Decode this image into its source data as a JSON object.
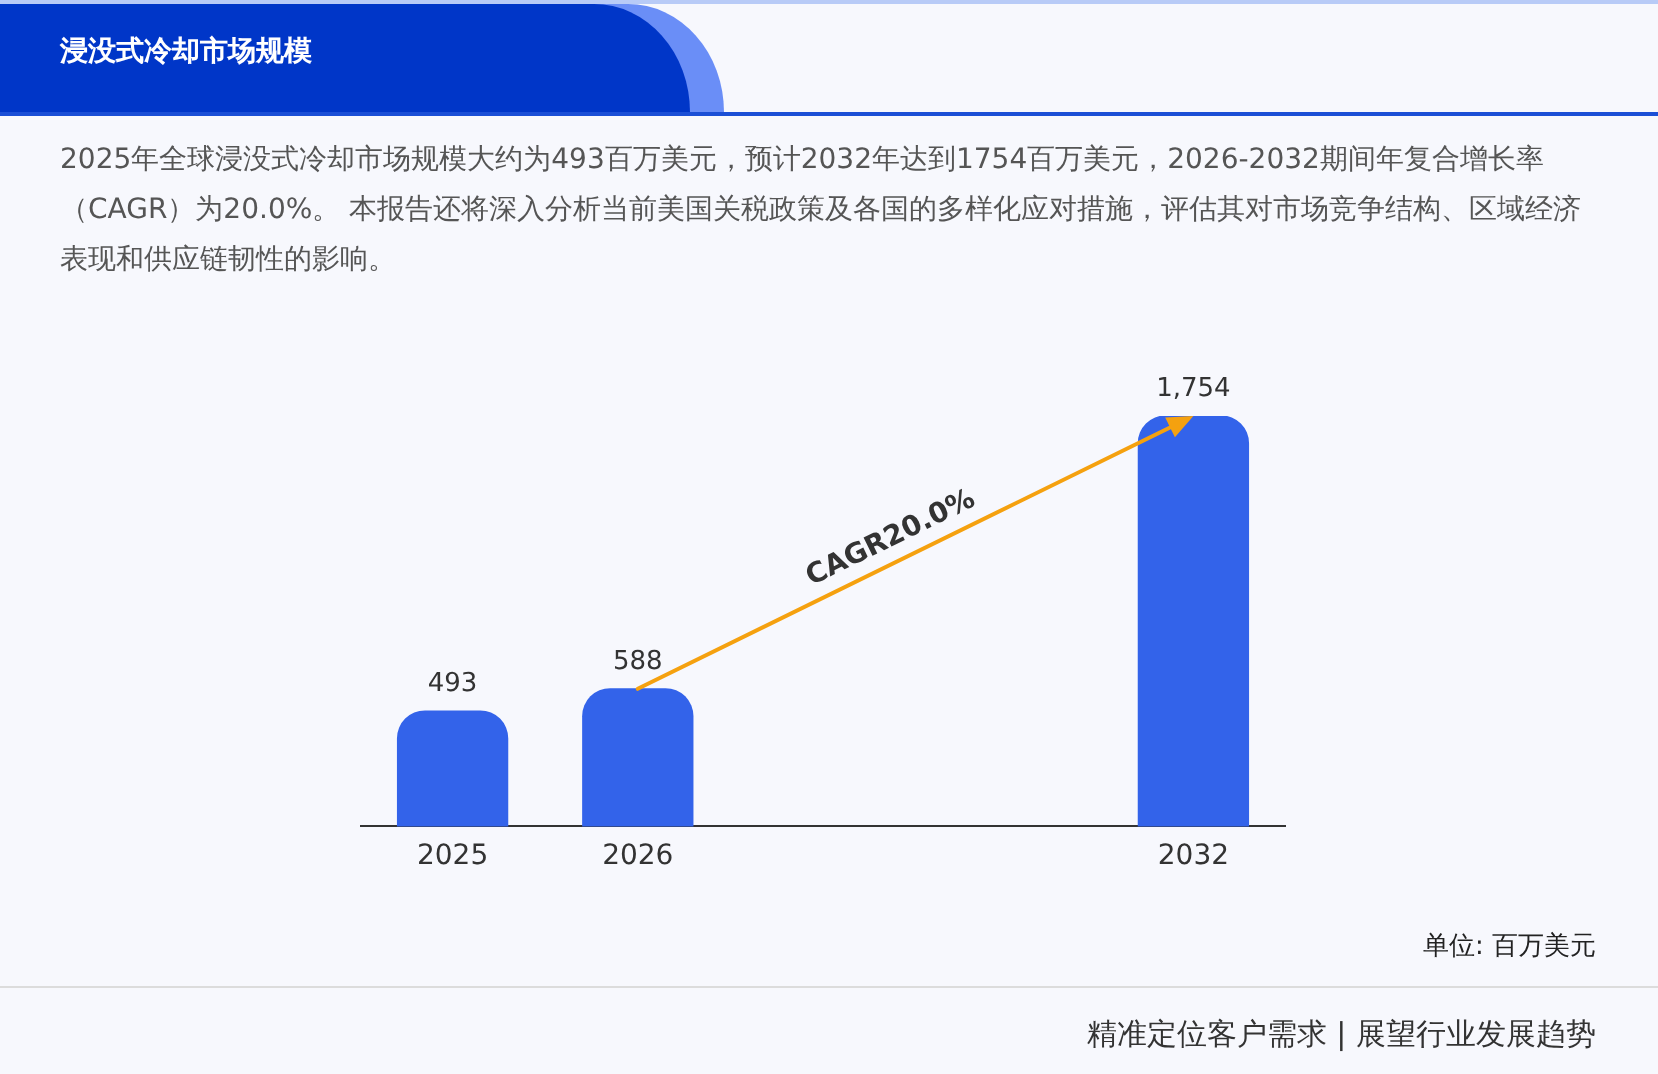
{
  "chart_data": {
    "type": "bar",
    "title": "浸没式冷却市场规模",
    "subtitle": "2025年全球浸没式冷却市场规模大约为493百万美元，预计2032年达到1754百万美元，2026-2032期间年复合增长率（CAGR）为20.0%。 本报告还将深入分析当前美国关税政策及各国的多样化应对措施，评估其对市场竞争结构、区域经济表现和供应链韧性的影响。",
    "categories": [
      "2025",
      "2026",
      null,
      null,
      "2032"
    ],
    "values": [
      493,
      588,
      null,
      null,
      1754
    ],
    "color": "#3363ea",
    "value_labels": [
      "493",
      "588",
      null,
      null,
      "1,754"
    ],
    "annotations": [
      "CAGR20.0%",
      "单位: 百万美元",
      "精准定位客户需求 | 展望行业发展趋势"
    ],
    "tick_labels": "x",
    "grid": false,
    "legend": false
  }
}
